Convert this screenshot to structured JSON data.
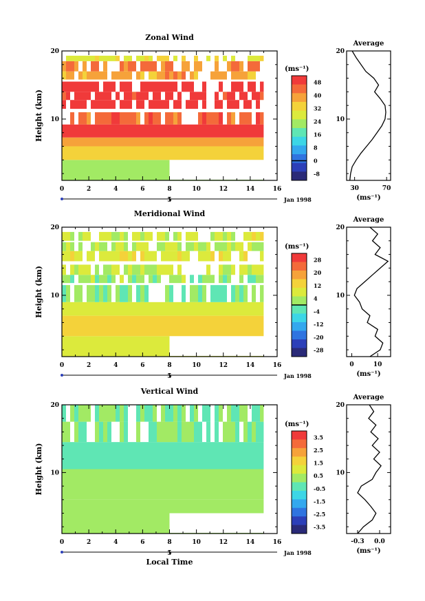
{
  "chart_data": [
    {
      "type": "heatmap",
      "title": "Zonal Wind",
      "ylabel": "Height (km)",
      "xlim": [
        0,
        16
      ],
      "ylim": [
        1,
        20
      ],
      "x_ticks": [
        "0",
        "2",
        "4",
        "6",
        "8",
        "10",
        "12",
        "14",
        "16"
      ],
      "y_ticks": [
        "10",
        "20"
      ],
      "date_label": "5",
      "date_suffix": "Jan 1998",
      "colorbar": {
        "unit": "(ms⁻¹)",
        "labels": [
          "48",
          "40",
          "32",
          "24",
          "16",
          "8",
          "0",
          "-8"
        ],
        "min": -12,
        "max": 52,
        "contour_at": 0
      },
      "data_coverage": {
        "x_end": 15,
        "low_cutoff_time": 8,
        "low_cutoff_height": 4
      },
      "rows": [
        {
          "h": [
            1.0,
            4.0
          ],
          "v": 22
        },
        {
          "h": [
            4.0,
            6.0
          ],
          "v": 34
        },
        {
          "h": [
            6.0,
            7.3
          ],
          "v": 38
        },
        {
          "h": [
            7.3,
            9.2
          ],
          "v": 52
        },
        {
          "h": [
            9.2,
            11.0
          ],
          "v": 44,
          "sparse": true
        },
        {
          "h": [
            11.5,
            12.8
          ],
          "v": 52,
          "sparse": true
        },
        {
          "h": [
            12.8,
            14.0
          ],
          "v": 50,
          "sparse": true
        },
        {
          "h": [
            14.0,
            15.5
          ],
          "v": 52,
          "sparse": true
        },
        {
          "h": [
            15.8,
            17.0
          ],
          "v": 38,
          "sparse": true
        },
        {
          "h": [
            17.0,
            18.5
          ],
          "v": 42,
          "sparse": true
        },
        {
          "h": [
            18.5,
            19.3
          ],
          "v": 30,
          "sparse": true
        }
      ],
      "average": {
        "xlim": [
          20,
          75
        ],
        "x_ticks": [
          "30",
          "70"
        ],
        "xlabel": "(ms⁻¹)",
        "profile": [
          [
            24,
            1
          ],
          [
            25,
            2
          ],
          [
            27,
            3
          ],
          [
            32,
            4
          ],
          [
            38,
            5
          ],
          [
            45,
            6
          ],
          [
            52,
            7
          ],
          [
            58,
            8
          ],
          [
            64,
            9
          ],
          [
            68,
            10
          ],
          [
            69,
            11
          ],
          [
            68,
            12
          ],
          [
            62,
            13
          ],
          [
            55,
            14
          ],
          [
            60,
            15
          ],
          [
            54,
            16
          ],
          [
            44,
            17
          ],
          [
            38,
            18
          ],
          [
            32,
            19
          ],
          [
            27,
            20
          ]
        ]
      }
    },
    {
      "type": "heatmap",
      "title": "Meridional Wind",
      "ylabel": "Height (km)",
      "xlim": [
        0,
        16
      ],
      "ylim": [
        1,
        20
      ],
      "x_ticks": [
        "0",
        "2",
        "4",
        "6",
        "8",
        "10",
        "12",
        "14",
        "16"
      ],
      "y_ticks": [
        "10",
        "20"
      ],
      "date_label": "5",
      "date_suffix": "Jan 1998",
      "colorbar": {
        "unit": "(ms⁻¹)",
        "labels": [
          "28",
          "20",
          "12",
          "4",
          "-4",
          "-12",
          "-20",
          "-28"
        ],
        "min": -32,
        "max": 32,
        "contour_at": 0
      },
      "data_coverage": {
        "x_end": 15,
        "low_cutoff_time": 8,
        "low_cutoff_height": 4
      },
      "rows": [
        {
          "h": [
            1.0,
            4.0
          ],
          "v": 8
        },
        {
          "h": [
            4.0,
            7.0
          ],
          "v": 12
        },
        {
          "h": [
            7.0,
            9.0
          ],
          "v": 10
        },
        {
          "h": [
            9.0,
            11.5
          ],
          "v": 0,
          "sparse": true
        },
        {
          "h": [
            11.8,
            13.0
          ],
          "v": 2,
          "sparse": true
        },
        {
          "h": [
            13.0,
            14.5
          ],
          "v": 6,
          "sparse": true
        },
        {
          "h": [
            15.0,
            16.5
          ],
          "v": 9,
          "sparse": true
        },
        {
          "h": [
            16.5,
            17.8
          ],
          "v": 4,
          "sparse": true
        },
        {
          "h": [
            18.0,
            19.3
          ],
          "v": 7,
          "sparse": true
        }
      ],
      "average": {
        "xlim": [
          -2,
          15
        ],
        "x_ticks": [
          "0",
          "10"
        ],
        "xlabel": "(ms⁻¹)",
        "profile": [
          [
            7,
            1
          ],
          [
            11,
            2
          ],
          [
            12,
            3
          ],
          [
            9,
            4
          ],
          [
            10,
            5
          ],
          [
            6,
            6
          ],
          [
            7,
            7
          ],
          [
            4,
            8
          ],
          [
            3,
            9
          ],
          [
            1,
            10
          ],
          [
            2,
            11
          ],
          [
            5,
            12
          ],
          [
            8,
            13
          ],
          [
            11,
            14
          ],
          [
            14,
            15
          ],
          [
            9,
            16
          ],
          [
            11,
            17
          ],
          [
            8,
            18
          ],
          [
            10,
            19
          ],
          [
            7,
            20
          ]
        ]
      }
    },
    {
      "type": "heatmap",
      "title": "Vertical Wind",
      "ylabel": "Height (km)",
      "xlabel": "Local Time",
      "xlim": [
        0,
        16
      ],
      "ylim": [
        1,
        20
      ],
      "x_ticks": [
        "0",
        "2",
        "4",
        "6",
        "8",
        "10",
        "12",
        "14",
        "16"
      ],
      "y_ticks": [
        "10",
        "20"
      ],
      "date_label": "5",
      "date_suffix": "Jan 1998",
      "colorbar": {
        "unit": "(ms⁻¹)",
        "labels": [
          "3.5",
          "2.5",
          "1.5",
          "0.5",
          "-0.5",
          "-1.5",
          "-2.5",
          "-3.5"
        ],
        "min": -4,
        "max": 4,
        "contour_at": null
      },
      "data_coverage": {
        "x_end": 15,
        "low_cutoff_time": 8,
        "low_cutoff_height": 4
      },
      "rows": [
        {
          "h": [
            1.0,
            6.0
          ],
          "v": 0.2
        },
        {
          "h": [
            6.0,
            10.5
          ],
          "v": 0.1
        },
        {
          "h": [
            10.5,
            14.5
          ],
          "v": -0.2
        },
        {
          "h": [
            14.5,
            17.5
          ],
          "v": 0.0,
          "sparse": true
        },
        {
          "h": [
            17.5,
            20.0
          ],
          "v": -0.1,
          "sparse": true
        }
      ],
      "average": {
        "xlim": [
          -0.45,
          0.15
        ],
        "x_ticks": [
          "-0.3",
          "0.0"
        ],
        "xlabel": "(ms⁻¹)",
        "profile": [
          [
            -0.3,
            1
          ],
          [
            -0.22,
            2
          ],
          [
            -0.1,
            3
          ],
          [
            -0.05,
            4
          ],
          [
            -0.12,
            5
          ],
          [
            -0.2,
            6
          ],
          [
            -0.3,
            7
          ],
          [
            -0.25,
            8
          ],
          [
            -0.1,
            9
          ],
          [
            -0.05,
            10
          ],
          [
            0.02,
            11
          ],
          [
            -0.08,
            12
          ],
          [
            0.0,
            13
          ],
          [
            -0.1,
            14
          ],
          [
            -0.02,
            15
          ],
          [
            -0.12,
            16
          ],
          [
            -0.05,
            17
          ],
          [
            -0.15,
            18
          ],
          [
            -0.08,
            19
          ],
          [
            -0.14,
            20
          ]
        ]
      }
    }
  ]
}
